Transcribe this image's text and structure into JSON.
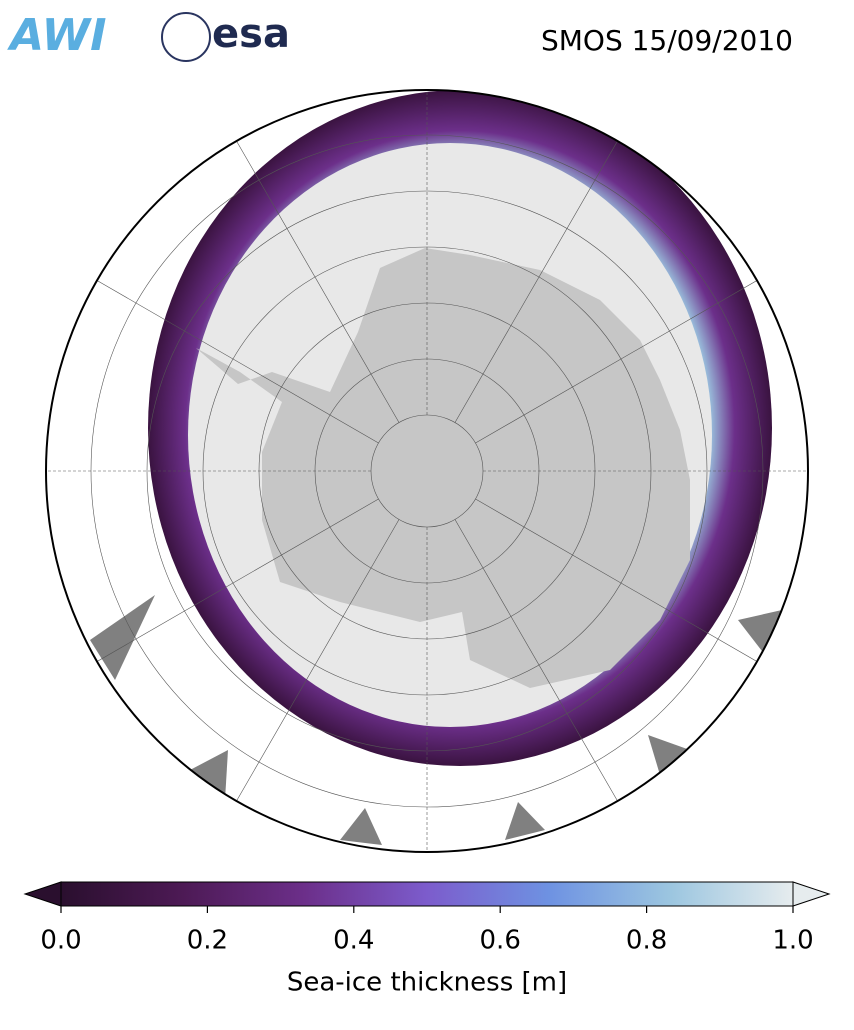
{
  "header": {
    "logos": [
      "AWI",
      "esa"
    ],
    "title": "SMOS 15/09/2010"
  },
  "colorbar": {
    "label": "Sea-ice thickness [m]",
    "xlim": [
      0,
      1
    ],
    "xticks": [
      {
        "value": 0,
        "label": "0.0"
      },
      0.2,
      0.4,
      0.6,
      0.8,
      {
        "value": 1,
        "label": "1.0"
      }
    ],
    "colormap": [
      "#2a0f2e",
      "#4d1a55",
      "#6c2f8a",
      "#7c5ccc",
      "#6e92e2",
      "#9cc6e0",
      "#e6ecee"
    ]
  }
}
